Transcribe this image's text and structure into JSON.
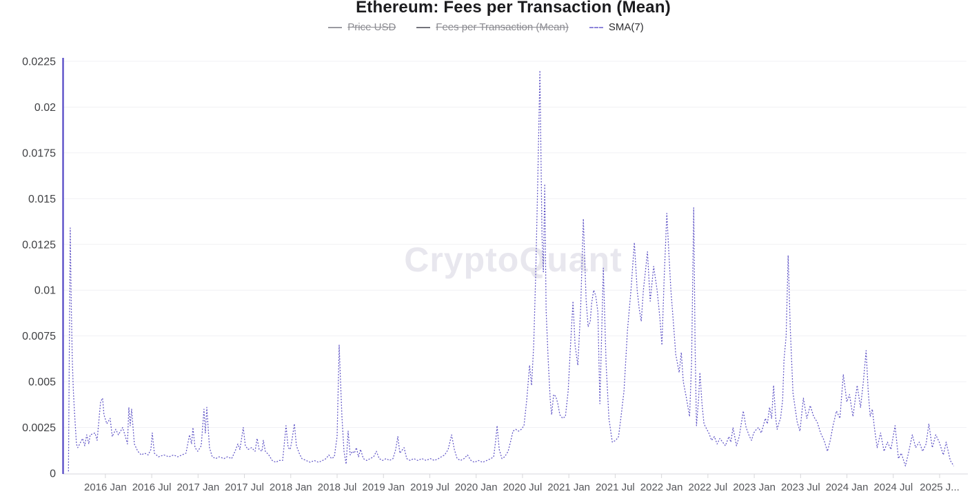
{
  "title": "Ethereum: Fees per Transaction (Mean)",
  "watermark": "CryptoQuant",
  "legend": [
    {
      "label": "Price USD",
      "struck": true,
      "marker_color": "#9a9aa0",
      "marker_style": "solid",
      "label_color": "#8b8b91"
    },
    {
      "label": "Fees per Transaction (Mean)",
      "struck": true,
      "marker_color": "#73737a",
      "marker_style": "solid",
      "label_color": "#8b8b91"
    },
    {
      "label": "SMA(7)",
      "struck": false,
      "marker_color": "#8d85da",
      "marker_style": "dashed",
      "label_color": "#2b2b2e"
    }
  ],
  "colors": {
    "series": "#6055c6",
    "y_axis_line": "#5b50c8",
    "grid": "#f1f1f4",
    "x_axis_line": "#dfdfe3",
    "tick_mark": "#d6d6d9",
    "x_label": "#55565a",
    "y_label": "#3f4043",
    "title": "#1c1c1f",
    "watermark": "#e8e7ee"
  },
  "chart_data": {
    "type": "line",
    "title": "Ethereum: Fees per Transaction (Mean)",
    "series_name": "SMA(7)",
    "line_style": "dashed",
    "legend_position": "top",
    "grid": true,
    "x_unit": "decimal_year",
    "x_range": [
      2015.54,
      2025.26
    ],
    "ylim": [
      0,
      0.0225
    ],
    "y_ticks": [
      {
        "v": 0,
        "label": "0"
      },
      {
        "v": 0.0025,
        "label": "0.0025"
      },
      {
        "v": 0.005,
        "label": "0.005"
      },
      {
        "v": 0.0075,
        "label": "0.0075"
      },
      {
        "v": 0.01,
        "label": "0.01"
      },
      {
        "v": 0.0125,
        "label": "0.0125"
      },
      {
        "v": 0.015,
        "label": "0.015"
      },
      {
        "v": 0.0175,
        "label": "0.0175"
      },
      {
        "v": 0.02,
        "label": "0.02"
      },
      {
        "v": 0.0225,
        "label": "0.0225"
      }
    ],
    "x_ticks": [
      {
        "t": 2016.0,
        "label": "2016 Jan"
      },
      {
        "t": 2016.5,
        "label": "2016 Jul"
      },
      {
        "t": 2017.0,
        "label": "2017 Jan"
      },
      {
        "t": 2017.5,
        "label": "2017 Jul"
      },
      {
        "t": 2018.0,
        "label": "2018 Jan"
      },
      {
        "t": 2018.5,
        "label": "2018 Jul"
      },
      {
        "t": 2019.0,
        "label": "2019 Jan"
      },
      {
        "t": 2019.5,
        "label": "2019 Jul"
      },
      {
        "t": 2020.0,
        "label": "2020 Jan"
      },
      {
        "t": 2020.5,
        "label": "2020 Jul"
      },
      {
        "t": 2021.0,
        "label": "2021 Jan"
      },
      {
        "t": 2021.5,
        "label": "2021 Jul"
      },
      {
        "t": 2022.0,
        "label": "2022 Jan"
      },
      {
        "t": 2022.5,
        "label": "2022 Jul"
      },
      {
        "t": 2023.0,
        "label": "2023 Jan"
      },
      {
        "t": 2023.5,
        "label": "2023 Jul"
      },
      {
        "t": 2024.0,
        "label": "2024 Jan"
      },
      {
        "t": 2024.5,
        "label": "2024 Jul"
      },
      {
        "t": 2025.0,
        "label": "2025 J..."
      }
    ],
    "points": [
      [
        2015.602,
        0.0001
      ],
      [
        2015.621,
        0.0134
      ],
      [
        2015.632,
        0.0092
      ],
      [
        2015.643,
        0.0063
      ],
      [
        2015.654,
        0.0046
      ],
      [
        2015.665,
        0.0035
      ],
      [
        2015.688,
        0.0016
      ],
      [
        2015.702,
        0.0014
      ],
      [
        2015.754,
        0.0019
      ],
      [
        2015.777,
        0.0015
      ],
      [
        2015.799,
        0.0021
      ],
      [
        2015.821,
        0.0016
      ],
      [
        2015.836,
        0.0021
      ],
      [
        2015.888,
        0.0022
      ],
      [
        2015.911,
        0.0018
      ],
      [
        2015.948,
        0.0039
      ],
      [
        2015.97,
        0.0041
      ],
      [
        2015.985,
        0.0032
      ],
      [
        2016.015,
        0.0027
      ],
      [
        2016.052,
        0.003
      ],
      [
        2016.074,
        0.002
      ],
      [
        2016.112,
        0.0024
      ],
      [
        2016.141,
        0.0021
      ],
      [
        2016.186,
        0.0025
      ],
      [
        2016.216,
        0.002
      ],
      [
        2016.238,
        0.0016
      ],
      [
        2016.253,
        0.0036
      ],
      [
        2016.268,
        0.0026
      ],
      [
        2016.283,
        0.0035
      ],
      [
        2016.313,
        0.0016
      ],
      [
        2016.35,
        0.0012
      ],
      [
        2016.387,
        0.001
      ],
      [
        2016.424,
        0.0011
      ],
      [
        2016.461,
        0.001
      ],
      [
        2016.491,
        0.0013
      ],
      [
        2016.506,
        0.0022
      ],
      [
        2016.528,
        0.0011
      ],
      [
        2016.573,
        0.0009
      ],
      [
        2016.632,
        0.001
      ],
      [
        2016.685,
        0.0009
      ],
      [
        2016.737,
        0.001
      ],
      [
        2016.781,
        0.0009
      ],
      [
        2016.826,
        0.001
      ],
      [
        2016.87,
        0.0011
      ],
      [
        2016.908,
        0.0021
      ],
      [
        2016.93,
        0.0016
      ],
      [
        2016.945,
        0.0025
      ],
      [
        2016.967,
        0.0014
      ],
      [
        2016.997,
        0.0012
      ],
      [
        2017.034,
        0.0015
      ],
      [
        2017.064,
        0.0035
      ],
      [
        2017.079,
        0.0022
      ],
      [
        2017.094,
        0.0036
      ],
      [
        2017.123,
        0.0014
      ],
      [
        2017.153,
        0.0009
      ],
      [
        2017.19,
        0.0008
      ],
      [
        2017.228,
        0.0009
      ],
      [
        2017.28,
        0.0008
      ],
      [
        2017.317,
        0.0009
      ],
      [
        2017.362,
        0.0008
      ],
      [
        2017.399,
        0.0012
      ],
      [
        2017.429,
        0.0016
      ],
      [
        2017.451,
        0.0013
      ],
      [
        2017.488,
        0.0025
      ],
      [
        2017.51,
        0.0015
      ],
      [
        2017.54,
        0.0013
      ],
      [
        2017.577,
        0.0014
      ],
      [
        2017.615,
        0.0012
      ],
      [
        2017.637,
        0.0019
      ],
      [
        2017.659,
        0.0013
      ],
      [
        2017.689,
        0.0012
      ],
      [
        2017.704,
        0.0018
      ],
      [
        2017.726,
        0.0012
      ],
      [
        2017.763,
        0.001
      ],
      [
        2017.8,
        0.0007
      ],
      [
        2017.838,
        0.0006
      ],
      [
        2017.875,
        0.0007
      ],
      [
        2017.912,
        0.0007
      ],
      [
        2017.934,
        0.0018
      ],
      [
        2017.949,
        0.0026
      ],
      [
        2017.972,
        0.0014
      ],
      [
        2017.994,
        0.0013
      ],
      [
        2018.016,
        0.0019
      ],
      [
        2018.039,
        0.0027
      ],
      [
        2018.061,
        0.0015
      ],
      [
        2018.091,
        0.0011
      ],
      [
        2018.12,
        0.0008
      ],
      [
        2018.165,
        0.0007
      ],
      [
        2018.21,
        0.0006
      ],
      [
        2018.254,
        0.0007
      ],
      [
        2018.299,
        0.0006
      ],
      [
        2018.344,
        0.0007
      ],
      [
        2018.381,
        0.0008
      ],
      [
        2018.411,
        0.001
      ],
      [
        2018.44,
        0.0008
      ],
      [
        2018.47,
        0.0009
      ],
      [
        2018.5,
        0.002
      ],
      [
        2018.522,
        0.007
      ],
      [
        2018.537,
        0.005
      ],
      [
        2018.552,
        0.0031
      ],
      [
        2018.574,
        0.0012
      ],
      [
        2018.597,
        0.0005
      ],
      [
        2018.619,
        0.0023
      ],
      [
        2018.641,
        0.001
      ],
      [
        2018.664,
        0.0012
      ],
      [
        2018.686,
        0.0011
      ],
      [
        2018.708,
        0.0014
      ],
      [
        2018.731,
        0.0009
      ],
      [
        2018.753,
        0.0013
      ],
      [
        2018.783,
        0.0008
      ],
      [
        2018.82,
        0.0007
      ],
      [
        2018.857,
        0.0008
      ],
      [
        2018.894,
        0.0009
      ],
      [
        2018.924,
        0.0012
      ],
      [
        2018.954,
        0.0008
      ],
      [
        2018.991,
        0.0007
      ],
      [
        2019.028,
        0.0008
      ],
      [
        2019.065,
        0.0007
      ],
      [
        2019.103,
        0.0008
      ],
      [
        2019.132,
        0.0013
      ],
      [
        2019.155,
        0.002
      ],
      [
        2019.177,
        0.0011
      ],
      [
        2019.207,
        0.0013
      ],
      [
        2019.222,
        0.0014
      ],
      [
        2019.251,
        0.0008
      ],
      [
        2019.289,
        0.0007
      ],
      [
        2019.326,
        0.0008
      ],
      [
        2019.371,
        0.0007
      ],
      [
        2019.415,
        0.0008
      ],
      [
        2019.46,
        0.0007
      ],
      [
        2019.505,
        0.0008
      ],
      [
        2019.549,
        0.0007
      ],
      [
        2019.594,
        0.0008
      ],
      [
        2019.624,
        0.0009
      ],
      [
        2019.661,
        0.001
      ],
      [
        2019.698,
        0.0013
      ],
      [
        2019.735,
        0.0021
      ],
      [
        2019.765,
        0.0013
      ],
      [
        2019.795,
        0.0008
      ],
      [
        2019.832,
        0.0007
      ],
      [
        2019.869,
        0.0008
      ],
      [
        2019.906,
        0.001
      ],
      [
        2019.944,
        0.0007
      ],
      [
        2019.981,
        0.0006
      ],
      [
        2020.025,
        0.0007
      ],
      [
        2020.07,
        0.0006
      ],
      [
        2020.115,
        0.0007
      ],
      [
        2020.159,
        0.0008
      ],
      [
        2020.189,
        0.0009
      ],
      [
        2020.211,
        0.0018
      ],
      [
        2020.226,
        0.0026
      ],
      [
        2020.249,
        0.0013
      ],
      [
        2020.278,
        0.0008
      ],
      [
        2020.308,
        0.0009
      ],
      [
        2020.345,
        0.0012
      ],
      [
        2020.375,
        0.0018
      ],
      [
        2020.397,
        0.0023
      ],
      [
        2020.427,
        0.0024
      ],
      [
        2020.457,
        0.0023
      ],
      [
        2020.487,
        0.0024
      ],
      [
        2020.516,
        0.0026
      ],
      [
        2020.546,
        0.004
      ],
      [
        2020.576,
        0.0059
      ],
      [
        2020.598,
        0.0048
      ],
      [
        2020.621,
        0.007
      ],
      [
        2020.643,
        0.011
      ],
      [
        2020.665,
        0.016
      ],
      [
        2020.688,
        0.022
      ],
      [
        2020.71,
        0.013
      ],
      [
        2020.725,
        0.011
      ],
      [
        2020.74,
        0.0158
      ],
      [
        2020.755,
        0.0089
      ],
      [
        2020.777,
        0.0062
      ],
      [
        2020.799,
        0.004
      ],
      [
        2020.814,
        0.0032
      ],
      [
        2020.836,
        0.0043
      ],
      [
        2020.859,
        0.0042
      ],
      [
        2020.881,
        0.0038
      ],
      [
        2020.903,
        0.0032
      ],
      [
        2020.933,
        0.003
      ],
      [
        2020.963,
        0.0031
      ],
      [
        2020.993,
        0.0045
      ],
      [
        2021.015,
        0.0067
      ],
      [
        2021.045,
        0.0094
      ],
      [
        2021.067,
        0.007
      ],
      [
        2021.097,
        0.0059
      ],
      [
        2021.127,
        0.009
      ],
      [
        2021.156,
        0.0139
      ],
      [
        2021.186,
        0.0095
      ],
      [
        2021.208,
        0.008
      ],
      [
        2021.231,
        0.0083
      ],
      [
        2021.246,
        0.0093
      ],
      [
        2021.268,
        0.01
      ],
      [
        2021.29,
        0.0097
      ],
      [
        2021.313,
        0.0088
      ],
      [
        2021.335,
        0.0038
      ],
      [
        2021.372,
        0.0112
      ],
      [
        2021.402,
        0.006
      ],
      [
        2021.432,
        0.003
      ],
      [
        2021.469,
        0.0017
      ],
      [
        2021.506,
        0.0018
      ],
      [
        2021.536,
        0.002
      ],
      [
        2021.565,
        0.0032
      ],
      [
        2021.595,
        0.0045
      ],
      [
        2021.632,
        0.0078
      ],
      [
        2021.67,
        0.01
      ],
      [
        2021.707,
        0.0126
      ],
      [
        2021.737,
        0.01
      ],
      [
        2021.759,
        0.009
      ],
      [
        2021.781,
        0.0083
      ],
      [
        2021.804,
        0.01
      ],
      [
        2021.826,
        0.011
      ],
      [
        2021.848,
        0.0121
      ],
      [
        2021.878,
        0.0094
      ],
      [
        2021.915,
        0.0113
      ],
      [
        2021.952,
        0.01
      ],
      [
        2021.982,
        0.0085
      ],
      [
        2022.004,
        0.007
      ],
      [
        2022.027,
        0.0105
      ],
      [
        2022.057,
        0.0142
      ],
      [
        2022.079,
        0.012
      ],
      [
        2022.101,
        0.01
      ],
      [
        2022.131,
        0.008
      ],
      [
        2022.153,
        0.0065
      ],
      [
        2022.19,
        0.0055
      ],
      [
        2022.213,
        0.0066
      ],
      [
        2022.235,
        0.005
      ],
      [
        2022.265,
        0.0042
      ],
      [
        2022.302,
        0.0031
      ],
      [
        2022.324,
        0.006
      ],
      [
        2022.347,
        0.0145
      ],
      [
        2022.362,
        0.007
      ],
      [
        2022.377,
        0.0026
      ],
      [
        2022.399,
        0.004
      ],
      [
        2022.414,
        0.0055
      ],
      [
        2022.436,
        0.0038
      ],
      [
        2022.458,
        0.0027
      ],
      [
        2022.488,
        0.0024
      ],
      [
        2022.51,
        0.0022
      ],
      [
        2022.54,
        0.0018
      ],
      [
        2022.57,
        0.002
      ],
      [
        2022.6,
        0.0016
      ],
      [
        2022.629,
        0.0019
      ],
      [
        2022.659,
        0.0017
      ],
      [
        2022.689,
        0.0015
      ],
      [
        2022.726,
        0.002
      ],
      [
        2022.748,
        0.0017
      ],
      [
        2022.771,
        0.0025
      ],
      [
        2022.808,
        0.0015
      ],
      [
        2022.838,
        0.002
      ],
      [
        2022.882,
        0.0034
      ],
      [
        2022.912,
        0.0025
      ],
      [
        2022.949,
        0.002
      ],
      [
        2022.971,
        0.0018
      ],
      [
        2022.994,
        0.0022
      ],
      [
        2023.024,
        0.0024
      ],
      [
        2023.046,
        0.0025
      ],
      [
        2023.076,
        0.0022
      ],
      [
        2023.098,
        0.0026
      ],
      [
        2023.12,
        0.003
      ],
      [
        2023.142,
        0.0027
      ],
      [
        2023.165,
        0.0036
      ],
      [
        2023.187,
        0.003
      ],
      [
        2023.209,
        0.0048
      ],
      [
        2023.232,
        0.003
      ],
      [
        2023.247,
        0.0024
      ],
      [
        2023.269,
        0.0028
      ],
      [
        2023.284,
        0.003
      ],
      [
        2023.306,
        0.004
      ],
      [
        2023.321,
        0.0062
      ],
      [
        2023.344,
        0.0075
      ],
      [
        2023.366,
        0.0119
      ],
      [
        2023.388,
        0.008
      ],
      [
        2023.418,
        0.0044
      ],
      [
        2023.44,
        0.0036
      ],
      [
        2023.463,
        0.0028
      ],
      [
        2023.493,
        0.0023
      ],
      [
        2023.53,
        0.0041
      ],
      [
        2023.567,
        0.003
      ],
      [
        2023.604,
        0.0037
      ],
      [
        2023.641,
        0.0031
      ],
      [
        2023.679,
        0.0028
      ],
      [
        2023.716,
        0.0022
      ],
      [
        2023.753,
        0.0018
      ],
      [
        2023.79,
        0.0012
      ],
      [
        2023.82,
        0.0018
      ],
      [
        2023.85,
        0.0026
      ],
      [
        2023.887,
        0.0034
      ],
      [
        2023.924,
        0.003
      ],
      [
        2023.961,
        0.0054
      ],
      [
        2023.999,
        0.0039
      ],
      [
        2024.028,
        0.0043
      ],
      [
        2024.065,
        0.0031
      ],
      [
        2024.11,
        0.0048
      ],
      [
        2024.147,
        0.0036
      ],
      [
        2024.177,
        0.005
      ],
      [
        2024.207,
        0.0067
      ],
      [
        2024.229,
        0.0045
      ],
      [
        2024.251,
        0.0031
      ],
      [
        2024.274,
        0.0035
      ],
      [
        2024.296,
        0.0025
      ],
      [
        2024.326,
        0.0014
      ],
      [
        2024.363,
        0.0022
      ],
      [
        2024.4,
        0.0012
      ],
      [
        2024.437,
        0.0017
      ],
      [
        2024.475,
        0.0013
      ],
      [
        2024.519,
        0.0026
      ],
      [
        2024.556,
        0.0008
      ],
      [
        2024.586,
        0.0011
      ],
      [
        2024.631,
        0.0004
      ],
      [
        2024.668,
        0.0012
      ],
      [
        2024.705,
        0.0021
      ],
      [
        2024.742,
        0.0014
      ],
      [
        2024.78,
        0.0017
      ],
      [
        2024.817,
        0.0012
      ],
      [
        2024.854,
        0.0016
      ],
      [
        2024.884,
        0.0027
      ],
      [
        2024.921,
        0.0014
      ],
      [
        2024.958,
        0.0021
      ],
      [
        2024.996,
        0.0017
      ],
      [
        2025.04,
        0.001
      ],
      [
        2025.07,
        0.0017
      ],
      [
        2025.115,
        0.0007
      ],
      [
        2025.152,
        0.0004
      ]
    ]
  }
}
